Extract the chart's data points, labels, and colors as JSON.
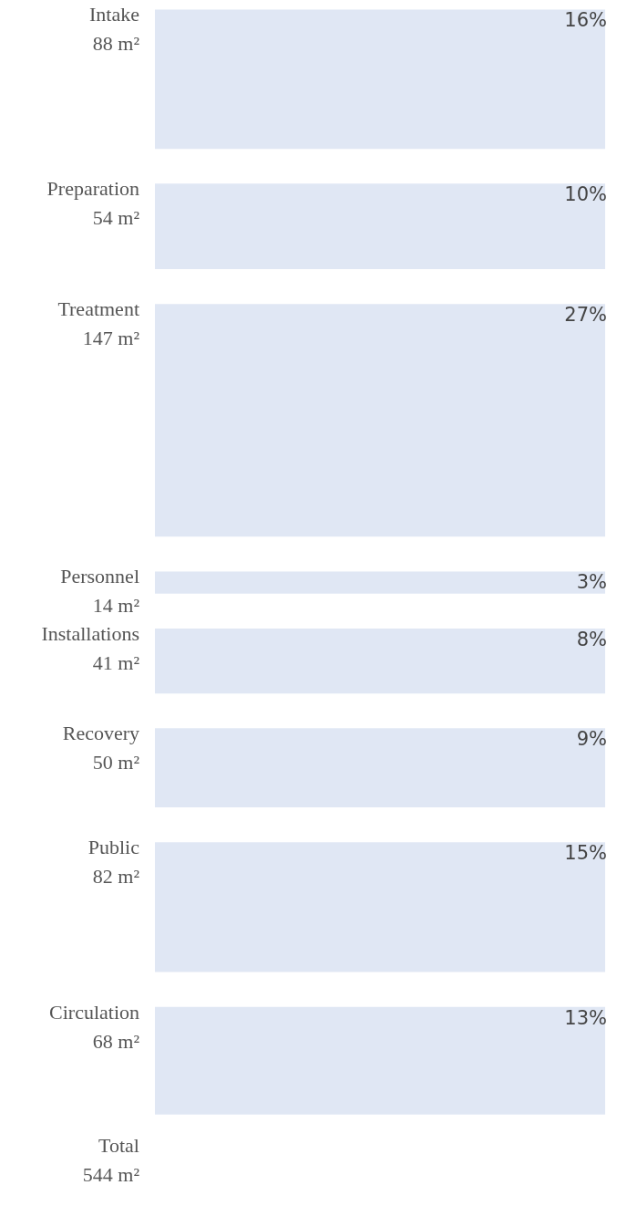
{
  "chart_data": {
    "type": "other",
    "categories": [
      "Intake",
      "Preparation",
      "Treatment",
      "Personnel",
      "Installations",
      "Recovery",
      "Public",
      "Circulation"
    ],
    "values": [
      88,
      54,
      147,
      14,
      41,
      50,
      82,
      68
    ],
    "value_labels": [
      "88 m²",
      "54 m²",
      "147 m²",
      "14 m²",
      "41 m²",
      "50 m²",
      "82 m²",
      "68 m²"
    ],
    "color": "#e0e7f4",
    "annotations": [
      {
        "text": "16%",
        "y": "Intake"
      },
      {
        "text": "10%",
        "y": "Preparation"
      },
      {
        "text": "27%",
        "y": "Treatment"
      },
      {
        "text": "3%",
        "y": "Personnel"
      },
      {
        "text": "8%",
        "y": "Installations"
      },
      {
        "text": "9%",
        "y": "Recovery"
      },
      {
        "text": "15%",
        "y": "Public"
      },
      {
        "text": "13%",
        "y": "Circulation"
      },
      "Total",
      "544 m²"
    ]
  }
}
